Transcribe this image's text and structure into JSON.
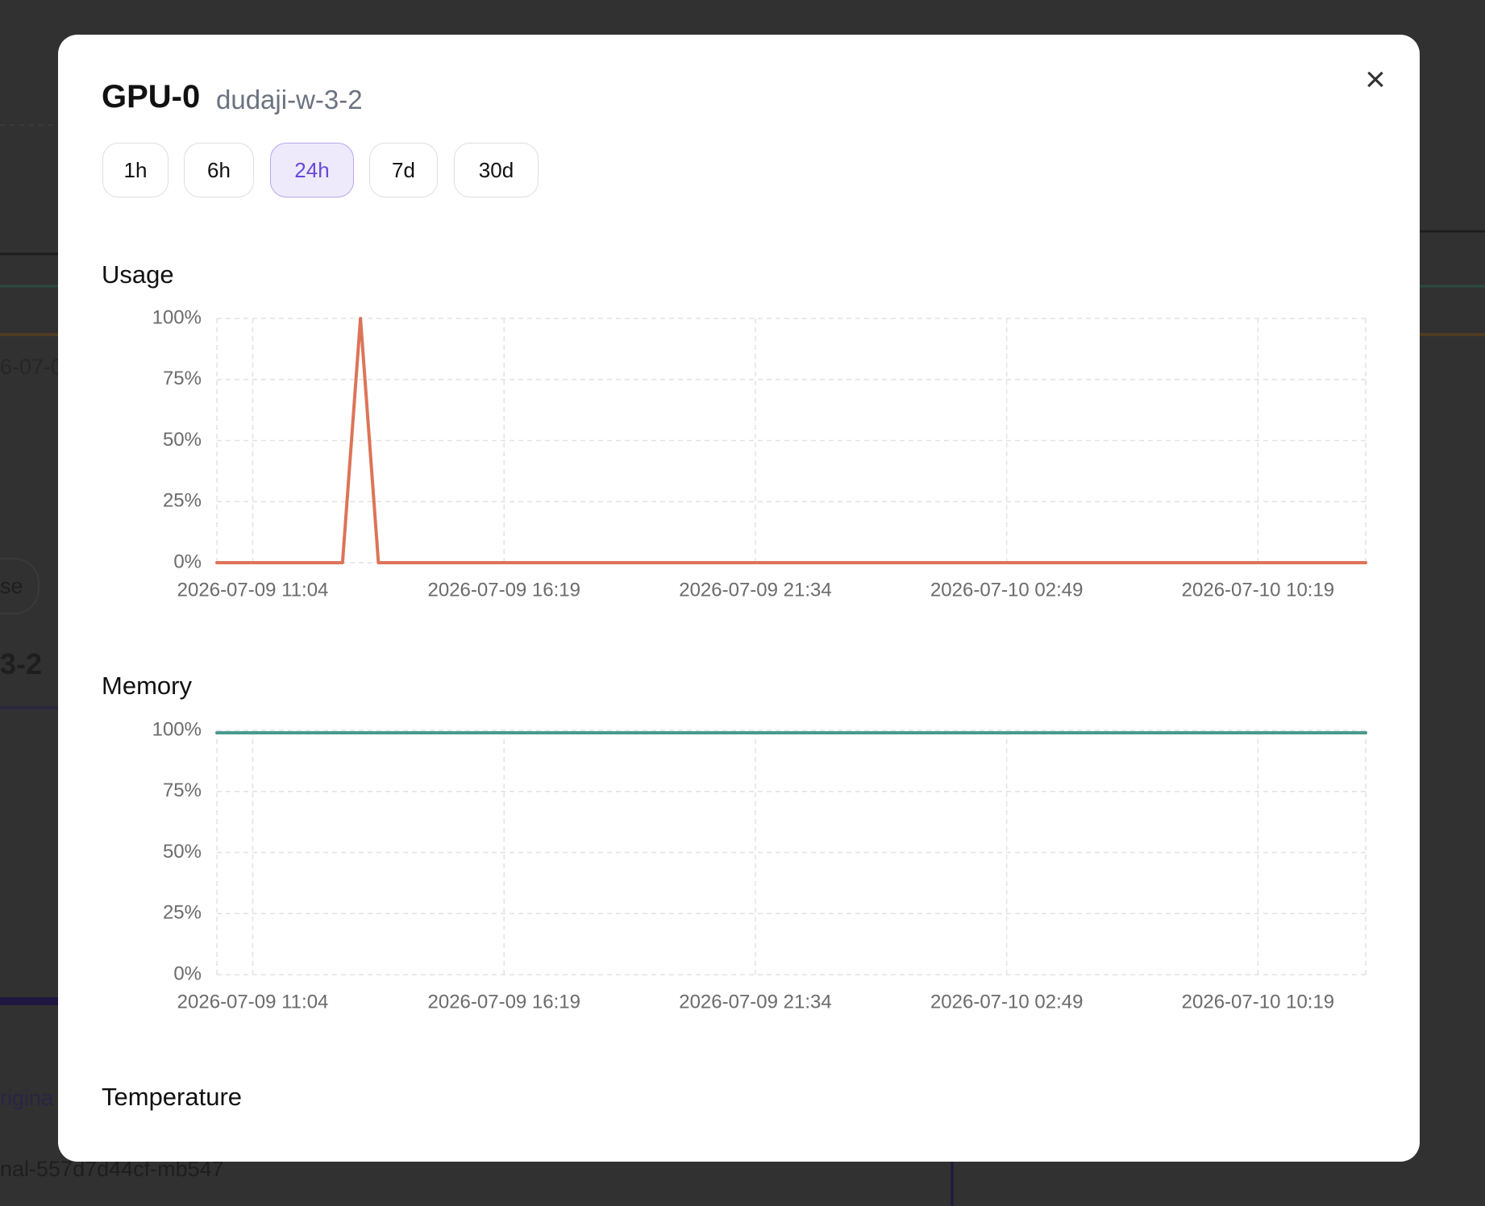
{
  "background": {
    "texts": [
      "6-07-0",
      "se",
      "3-2",
      "rigina",
      "nal-557d7d44cf-mb547"
    ]
  },
  "header": {
    "title": "GPU-0",
    "subtitle": "dudaji-w-3-2",
    "close": "×"
  },
  "range_buttons": {
    "options": [
      "1h",
      "6h",
      "24h",
      "7d",
      "30d"
    ],
    "active": "24h"
  },
  "chart_data": [
    {
      "type": "line",
      "title": "Usage",
      "categories": [
        null,
        null,
        "2026-07-09 11:04",
        null,
        null,
        null,
        null,
        null,
        null,
        null,
        null,
        null,
        null,
        null,
        null,
        null,
        "2026-07-09 16:19",
        null,
        null,
        null,
        null,
        null,
        null,
        null,
        null,
        null,
        null,
        null,
        null,
        null,
        "2026-07-09 21:34",
        null,
        null,
        null,
        null,
        null,
        null,
        null,
        null,
        null,
        null,
        null,
        null,
        null,
        "2026-07-10 02:49",
        null,
        null,
        null,
        null,
        null,
        null,
        null,
        null,
        null,
        null,
        null,
        null,
        null,
        "2026-07-10 10:19",
        null,
        null,
        null,
        null,
        null,
        null
      ],
      "series": [
        {
          "color": "#dd7458",
          "values": [
            0,
            0,
            0,
            0,
            0,
            0,
            0,
            0,
            100,
            0,
            0,
            0,
            0,
            0,
            0,
            0,
            0,
            0,
            0,
            0,
            0,
            0,
            0,
            0,
            0,
            0,
            0,
            0,
            0,
            0,
            0,
            0,
            0,
            0,
            0,
            0,
            0,
            0,
            0,
            0,
            0,
            0,
            0,
            0,
            0,
            0,
            0,
            0,
            0,
            0,
            0,
            0,
            0,
            0,
            0,
            0,
            0,
            0,
            0,
            0,
            0,
            0,
            0,
            0,
            0
          ]
        }
      ],
      "ylim": [
        0,
        100
      ],
      "yticks": [
        {
          "value": 0,
          "label": "0%"
        },
        {
          "value": 25,
          "label": "25%"
        },
        {
          "value": 50,
          "label": "50%"
        },
        {
          "value": 75,
          "label": "75%"
        },
        {
          "value": 100,
          "label": "100%"
        }
      ],
      "grid": true
    },
    {
      "type": "line",
      "title": "Memory",
      "categories": [
        null,
        null,
        "2026-07-09 11:04",
        null,
        null,
        null,
        null,
        null,
        null,
        null,
        null,
        null,
        null,
        null,
        null,
        null,
        "2026-07-09 16:19",
        null,
        null,
        null,
        null,
        null,
        null,
        null,
        null,
        null,
        null,
        null,
        null,
        null,
        "2026-07-09 21:34",
        null,
        null,
        null,
        null,
        null,
        null,
        null,
        null,
        null,
        null,
        null,
        null,
        null,
        "2026-07-10 02:49",
        null,
        null,
        null,
        null,
        null,
        null,
        null,
        null,
        null,
        null,
        null,
        null,
        null,
        "2026-07-10 10:19",
        null,
        null,
        null,
        null,
        null,
        null
      ],
      "series": [
        {
          "color": "#4a9a8f",
          "values": [
            99,
            99,
            99,
            99,
            99,
            99,
            99,
            99,
            99,
            99,
            99,
            99,
            99,
            99,
            99,
            99,
            99,
            99,
            99,
            99,
            99,
            99,
            99,
            99,
            99,
            99,
            99,
            99,
            99,
            99,
            99,
            99,
            99,
            99,
            99,
            99,
            99,
            99,
            99,
            99,
            99,
            99,
            99,
            99,
            99,
            99,
            99,
            99,
            99,
            99,
            99,
            99,
            99,
            99,
            99,
            99,
            99,
            99,
            99,
            99,
            99,
            99,
            99,
            99,
            99
          ]
        }
      ],
      "ylim": [
        0,
        100
      ],
      "yticks": [
        {
          "value": 0,
          "label": "0%"
        },
        {
          "value": 25,
          "label": "25%"
        },
        {
          "value": 50,
          "label": "50%"
        },
        {
          "value": 75,
          "label": "75%"
        },
        {
          "value": 100,
          "label": "100%"
        }
      ],
      "grid": true
    }
  ],
  "sections": {
    "next": "Temperature"
  }
}
